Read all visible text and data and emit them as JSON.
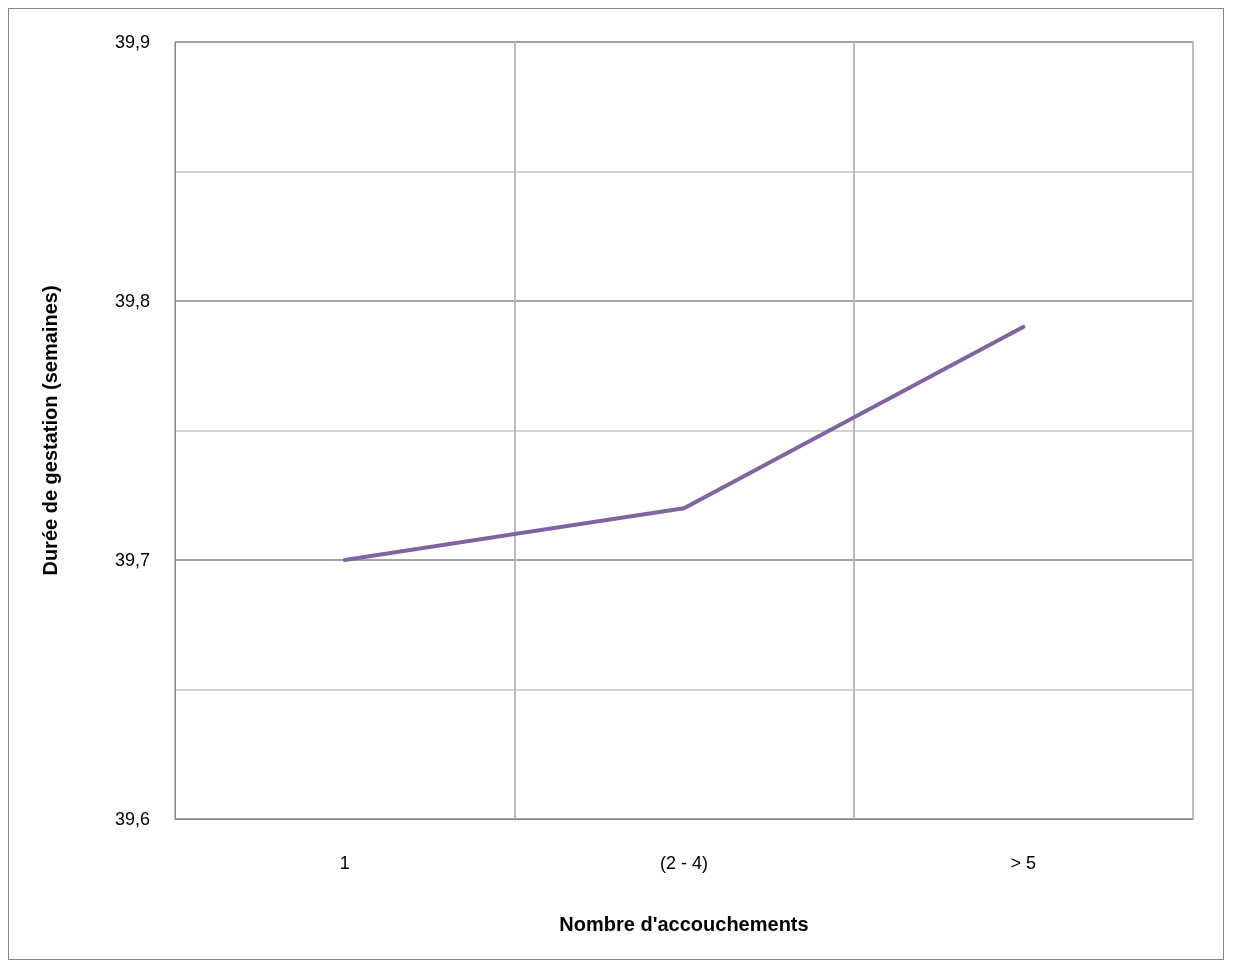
{
  "chart_data": {
    "type": "line",
    "xlabel": "Nombre d'accouchements",
    "ylabel": "Durée de gestation (semaines)",
    "categories": [
      "1",
      "(2 - 4)",
      "> 5"
    ],
    "series": [
      {
        "color": "#8064a2",
        "values": [
          39.7,
          39.72,
          39.79
        ]
      }
    ],
    "ylim": [
      39.6,
      39.9
    ],
    "yticks": [
      {
        "value": 39.6,
        "label": "39,6"
      },
      {
        "value": 39.65,
        "label": null
      },
      {
        "value": 39.7,
        "label": "39,7"
      },
      {
        "value": 39.75,
        "label": null
      },
      {
        "value": 39.8,
        "label": "39,8"
      },
      {
        "value": 39.85,
        "label": null
      },
      {
        "value": 39.9,
        "label": "39,9"
      }
    ],
    "grid": true,
    "marker": "none",
    "line_style": "solid"
  }
}
